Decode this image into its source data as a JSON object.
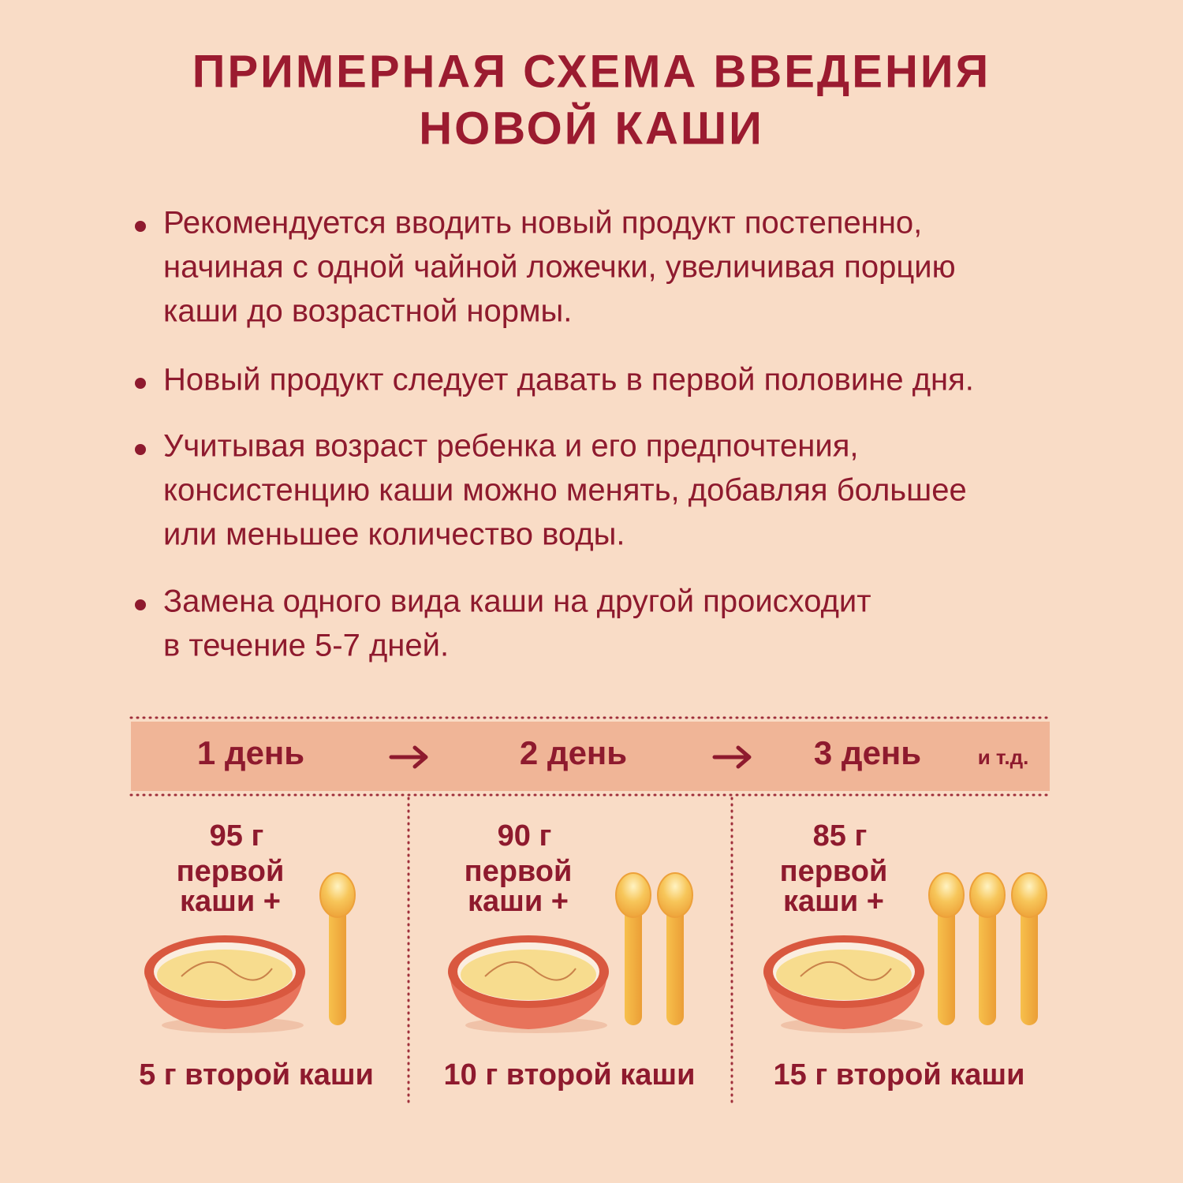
{
  "title": {
    "lines": [
      "ПРИМЕРНАЯ СХЕМА ВВЕДЕНИЯ",
      "НОВОЙ КАШИ"
    ]
  },
  "bullets": [
    {
      "lines": [
        "Рекомендуется вводить новый продукт постепенно,",
        "начиная с одной чайной ложечки, увеличивая порцию",
        "каши до возрастной нормы."
      ]
    },
    {
      "lines": [
        "Новый продукт следует  давать в первой половине дня."
      ]
    },
    {
      "lines": [
        "Учитывая возраст ребенка и его предпочтения,",
        "консистенцию каши можно менять, добавляя большее",
        "или меньшее количество воды."
      ]
    },
    {
      "lines": [
        "Замена одного вида каши на другой происходит",
        "в течение 5-7 дней."
      ]
    }
  ],
  "schedule": {
    "days": [
      "1 день",
      "2 день",
      "3 день"
    ],
    "etc": "и т.д.",
    "columns": [
      {
        "first_amount": "95 г",
        "first_lines": [
          "первой",
          "каши +"
        ],
        "second": "5 г второй каши"
      },
      {
        "first_amount": "90 г",
        "first_lines": [
          "первой",
          "каши +"
        ],
        "second": "10 г второй каши"
      },
      {
        "first_amount": "85 г",
        "first_lines": [
          "первой",
          "каши +"
        ],
        "second": "15 г второй каши"
      }
    ]
  }
}
